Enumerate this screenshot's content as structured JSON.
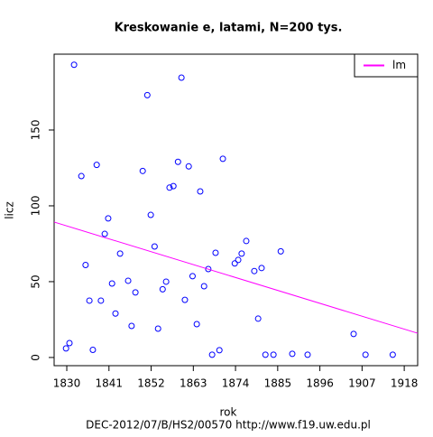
{
  "chart_data": {
    "type": "scatter",
    "title": "Kreskowanie e, latami, N=200 tys.",
    "x_label": "rok",
    "y_label": "licz",
    "footer": "DEC-2012/07/B/HS2/00570   http://www.f19.uw.edu.pl",
    "xlim": [
      1826.7,
      1921.5
    ],
    "ylim": [
      -5.4,
      200
    ],
    "xticks": [
      1830,
      1841,
      1852,
      1863,
      1874,
      1885,
      1896,
      1907,
      1918
    ],
    "yticks": [
      0,
      50,
      100,
      150
    ],
    "legend": "top-right",
    "series": [
      {
        "color": "#0000ff",
        "x": [
          1829.8,
          1830.7,
          1831.9,
          1833.8,
          1834.9,
          1835.9,
          1836.8,
          1837.8,
          1838.9,
          1839.9,
          1840.8,
          1841.8,
          1842.7,
          1843.9,
          1846,
          1846.9,
          1847.9,
          1849.8,
          1851,
          1851.9,
          1852.9,
          1853.8,
          1855,
          1855.9,
          1856.8,
          1857.8,
          1859,
          1859.9,
          1860.8,
          1861.8,
          1862.8,
          1863.9,
          1864.8,
          1865.8,
          1866.9,
          1867.9,
          1868.8,
          1869.8,
          1870.7,
          1873.8,
          1874.7,
          1875.6,
          1876.8,
          1878.9,
          1879.9,
          1880.8,
          1881.8,
          1883.9,
          1885.8,
          1888.8,
          1892.8,
          1904.8,
          1907.9,
          1915
        ],
        "values": [
          6,
          9.5,
          193,
          119.6,
          61,
          37.5,
          5,
          127,
          37.5,
          81.5,
          91.7,
          48.8,
          29,
          68.5,
          50.6,
          20.8,
          42.9,
          123,
          173,
          94,
          73.2,
          19,
          45,
          50,
          112,
          113,
          129,
          184.5,
          38,
          126,
          53.6,
          22,
          109.5,
          47,
          58.3,
          1.8,
          69,
          4.8,
          131,
          62,
          64.3,
          68.5,
          76.8,
          57,
          25.6,
          59,
          1.8,
          1.8,
          70,
          2.4,
          1.8,
          15.5,
          1.8,
          1.8
        ]
      },
      {
        "name": "lm",
        "color": "#ff00ff",
        "x": [
          1826.7,
          1921.5
        ],
        "values": [
          89.3,
          16
        ]
      }
    ]
  }
}
